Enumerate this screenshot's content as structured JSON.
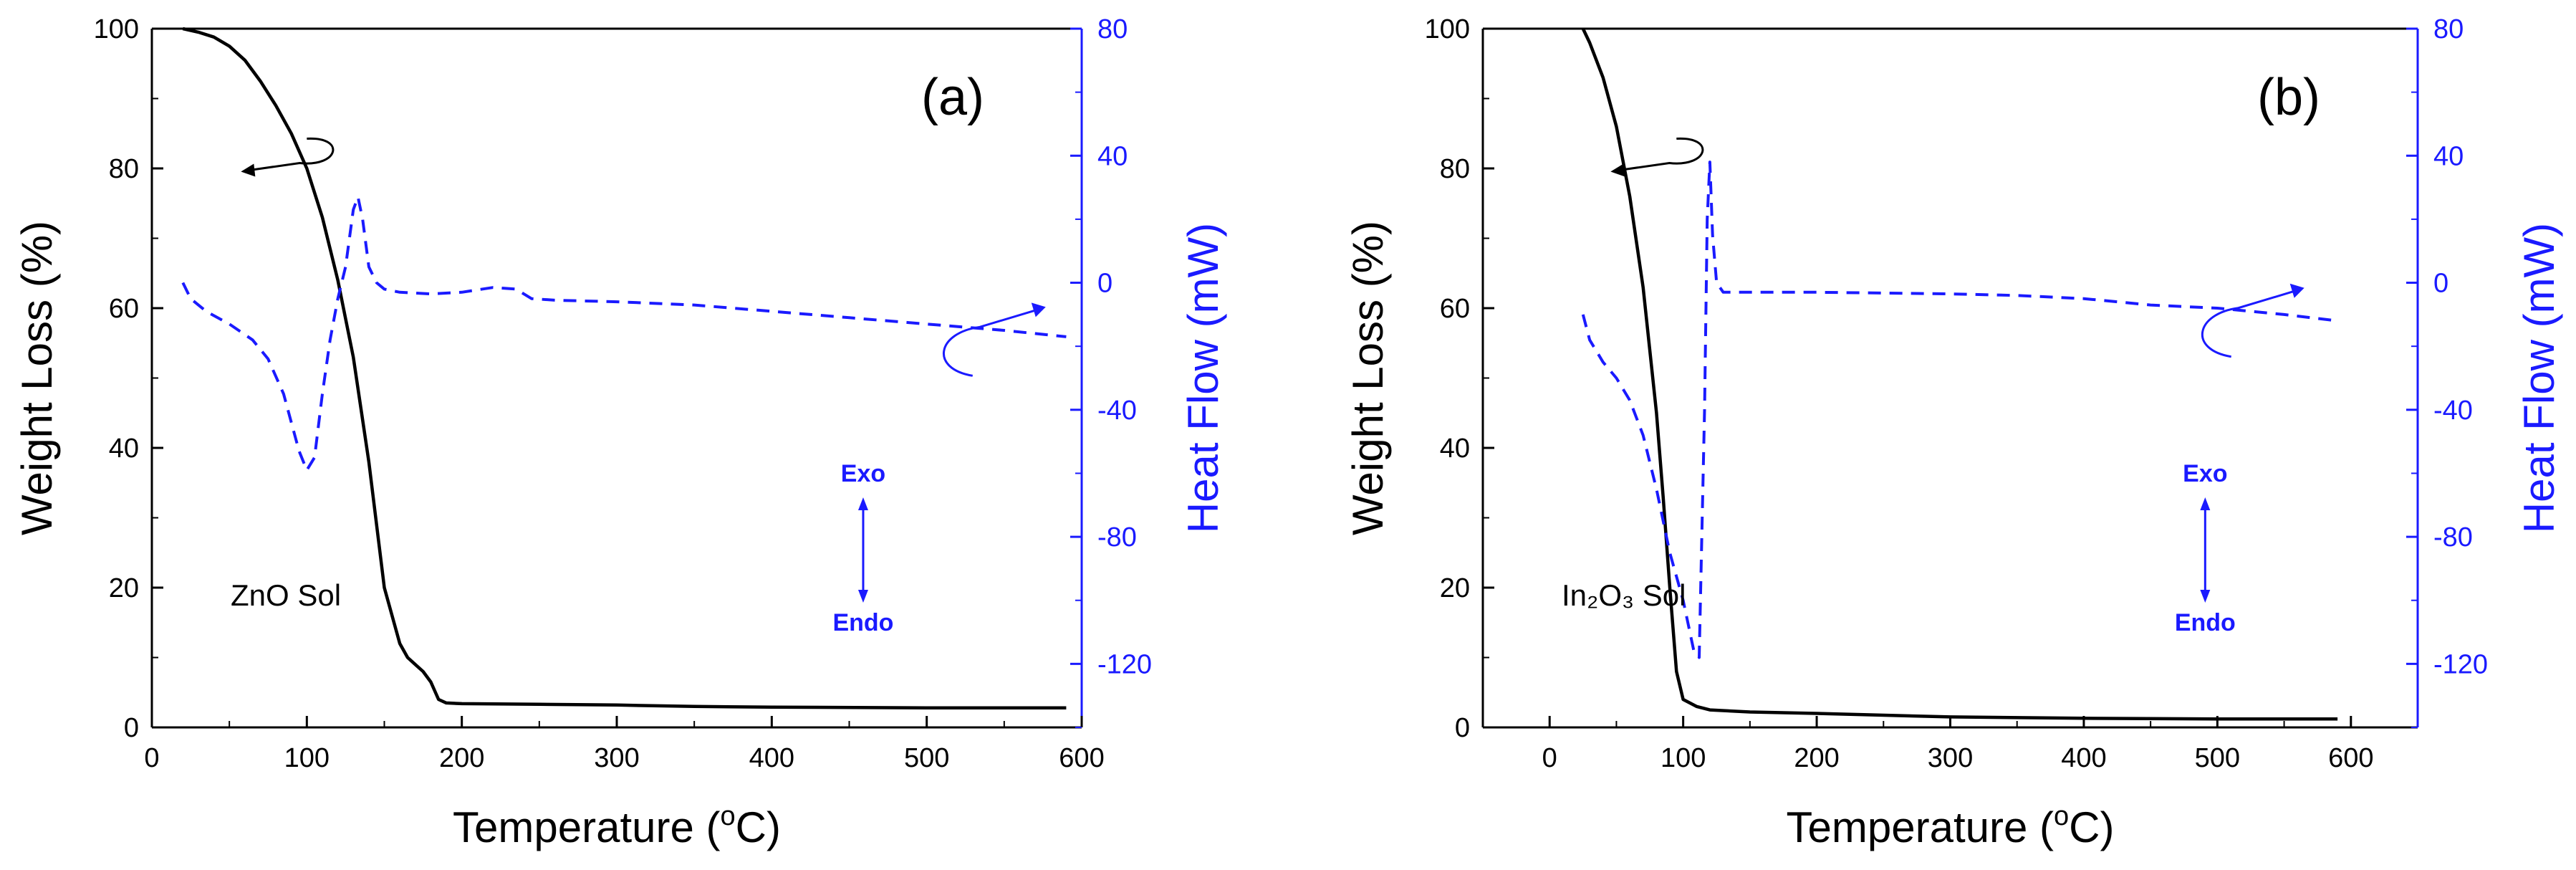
{
  "chart_data": [
    {
      "type": "line",
      "panel_label": "(a)",
      "sample_label": "ZnO Sol",
      "xlabel": "Temperature (°C)",
      "xlabel_parts": {
        "pre": "Temperature (",
        "sup": "o",
        "post": "C)"
      },
      "ylabel_left": "Weight Loss (%)",
      "ylabel_right": "Heat Flow (mW)",
      "xlim": [
        0,
        600
      ],
      "x_ticks": [
        0,
        100,
        200,
        300,
        400,
        500,
        600
      ],
      "ylim_left": [
        0,
        100
      ],
      "y_ticks_left": [
        0,
        20,
        40,
        60,
        80,
        100
      ],
      "ylim_right": [
        -140,
        80
      ],
      "y_ticks_right": [
        -120,
        -80,
        -40,
        0,
        40,
        80
      ],
      "exo_label": "Exo",
      "endo_label": "Endo",
      "colors": {
        "weight": "#000000",
        "heat": "#1a1aff",
        "axis_right": "#1a1aff"
      },
      "series": [
        {
          "name": "Weight Loss",
          "axis": "left",
          "style": "solid",
          "x": [
            20,
            30,
            40,
            50,
            60,
            70,
            80,
            90,
            100,
            110,
            120,
            130,
            140,
            150,
            160,
            165,
            170,
            175,
            180,
            185,
            190,
            200,
            250,
            300,
            350,
            400,
            500,
            590
          ],
          "y": [
            100,
            99.5,
            98.8,
            97.5,
            95.5,
            92.5,
            89,
            85,
            80,
            73,
            64,
            53,
            38,
            20,
            12,
            10,
            9,
            8,
            6.5,
            4,
            3.5,
            3.4,
            3.3,
            3.2,
            3.0,
            2.9,
            2.8,
            2.8
          ]
        },
        {
          "name": "Heat Flow",
          "axis": "right",
          "style": "dashed",
          "x": [
            20,
            25,
            35,
            50,
            65,
            75,
            85,
            95,
            100,
            105,
            110,
            115,
            120,
            125,
            130,
            133,
            136,
            140,
            145,
            150,
            160,
            180,
            200,
            220,
            235,
            245,
            260,
            300,
            350,
            400,
            450,
            500,
            550,
            590
          ],
          "y": [
            0,
            -5,
            -9,
            -13,
            -18,
            -24,
            -35,
            -53,
            -59,
            -55,
            -35,
            -18,
            -5,
            5,
            23,
            27,
            20,
            5,
            0,
            -2,
            -3,
            -3.5,
            -3,
            -1.5,
            -2,
            -5,
            -5.5,
            -6,
            -7,
            -9,
            -11,
            -13,
            -15,
            -17
          ]
        }
      ]
    },
    {
      "type": "line",
      "panel_label": "(b)",
      "sample_label": "In₂O₃ Sol",
      "xlabel": "Temperature (°C)",
      "xlabel_parts": {
        "pre": "Temperature (",
        "sup": "o",
        "post": "C)"
      },
      "ylabel_left": "Weight Loss (%)",
      "ylabel_right": "Heat Flow (mW)",
      "xlim": [
        -50,
        650
      ],
      "x_ticks": [
        0,
        100,
        200,
        300,
        400,
        500,
        600
      ],
      "ylim_left": [
        0,
        100
      ],
      "y_ticks_left": [
        0,
        20,
        40,
        60,
        80,
        100
      ],
      "ylim_right": [
        -140,
        80
      ],
      "y_ticks_right": [
        -120,
        -80,
        -40,
        0,
        40,
        80
      ],
      "exo_label": "Exo",
      "endo_label": "Endo",
      "colors": {
        "weight": "#000000",
        "heat": "#1a1aff",
        "axis_right": "#1a1aff"
      },
      "series": [
        {
          "name": "Weight Loss",
          "axis": "left",
          "style": "solid",
          "x": [
            25,
            30,
            40,
            50,
            60,
            70,
            80,
            85,
            90,
            95,
            100,
            110,
            120,
            150,
            200,
            300,
            400,
            500,
            590
          ],
          "y": [
            100,
            98,
            93,
            86,
            76,
            63,
            45,
            33,
            20,
            8,
            4,
            3,
            2.5,
            2.2,
            2,
            1.5,
            1.3,
            1.2,
            1.2
          ]
        },
        {
          "name": "Heat Flow",
          "axis": "right",
          "style": "dashed",
          "x": [
            25,
            30,
            40,
            50,
            60,
            70,
            80,
            90,
            100,
            108,
            112,
            116,
            118,
            120,
            122,
            125,
            130,
            140,
            200,
            300,
            350,
            400,
            450,
            500,
            550,
            590
          ],
          "y": [
            -10,
            -18,
            -25,
            -30,
            -37,
            -48,
            -65,
            -85,
            -100,
            -116,
            -118,
            -40,
            20,
            38,
            15,
            0,
            -3,
            -3,
            -3,
            -3.5,
            -4,
            -5,
            -7,
            -8,
            -10,
            -12
          ]
        }
      ]
    }
  ]
}
